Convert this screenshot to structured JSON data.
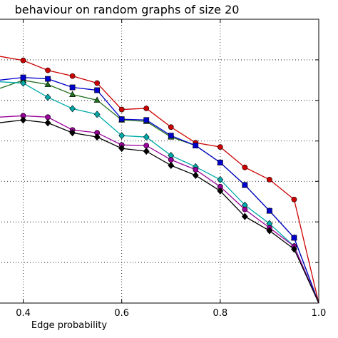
{
  "chart_data": {
    "type": "line",
    "title": "behaviour on random graphs of size 20",
    "xlabel": "Edge probability",
    "ylabel": "",
    "xlim": [
      0.35,
      1.0
    ],
    "ylim": [
      0.0,
      1.0
    ],
    "x_ticks": [
      0.4,
      0.6,
      0.8,
      1.0
    ],
    "x_tick_labels": [
      "0.4",
      "0.6",
      "0.8",
      "1.0"
    ],
    "y_gridlines": [
      0.143,
      0.286,
      0.429,
      0.571,
      0.714,
      0.857
    ],
    "grid": "dotted",
    "x": [
      0.35,
      0.4,
      0.45,
      0.5,
      0.55,
      0.6,
      0.65,
      0.7,
      0.75,
      0.8,
      0.85,
      0.9,
      0.95,
      1.0
    ],
    "series": [
      {
        "color": "#cc0000",
        "marker": "circle",
        "values": [
          0.87,
          0.855,
          0.82,
          0.8,
          0.775,
          0.682,
          0.686,
          0.62,
          0.565,
          0.55,
          0.478,
          0.435,
          0.365,
          0.0
        ]
      },
      {
        "color": "#1f6f1f",
        "marker": "triangle",
        "values": [
          0.755,
          0.785,
          0.77,
          0.735,
          0.715,
          0.645,
          0.64,
          0.585,
          0.555,
          0.495,
          0.416,
          0.325,
          0.23,
          0.0
        ]
      },
      {
        "color": "#0000cc",
        "marker": "square",
        "values": [
          0.785,
          0.795,
          0.79,
          0.76,
          0.75,
          0.648,
          0.645,
          0.59,
          0.555,
          0.495,
          0.416,
          0.325,
          0.23,
          0.0
        ]
      },
      {
        "color": "#00aaaa",
        "marker": "diamond",
        "values": [
          0.78,
          0.775,
          0.725,
          0.685,
          0.665,
          0.59,
          0.585,
          0.52,
          0.48,
          0.435,
          0.345,
          0.28,
          0.2,
          0.0
        ]
      },
      {
        "color": "#990099",
        "marker": "circle",
        "values": [
          0.655,
          0.66,
          0.655,
          0.61,
          0.6,
          0.557,
          0.555,
          0.505,
          0.47,
          0.41,
          0.33,
          0.265,
          0.2,
          0.0
        ]
      },
      {
        "color": "#000000",
        "marker": "diamond",
        "values": [
          0.635,
          0.645,
          0.635,
          0.6,
          0.585,
          0.545,
          0.535,
          0.485,
          0.45,
          0.395,
          0.305,
          0.255,
          0.19,
          0.0
        ]
      }
    ]
  }
}
